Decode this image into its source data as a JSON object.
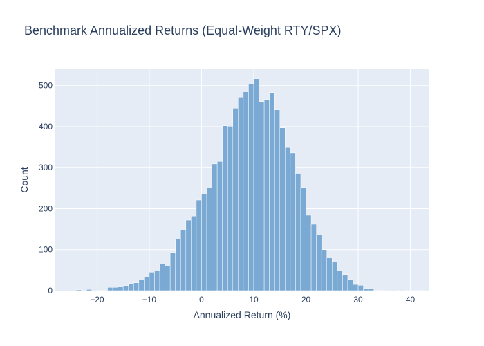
{
  "chart_data": {
    "type": "bar",
    "title": "Benchmark Annualized Returns (Equal-Weight RTY/SPX)",
    "xlabel": "Annualized Return (%)",
    "ylabel": "Count",
    "xlim": [
      -28,
      43.5
    ],
    "ylim": [
      0,
      540
    ],
    "x_ticks": [
      -20,
      -10,
      0,
      10,
      20,
      30,
      40
    ],
    "x_tick_labels": [
      "−20",
      "−10",
      "0",
      "10",
      "20",
      "30",
      "40"
    ],
    "y_ticks": [
      0,
      100,
      200,
      300,
      400,
      500
    ],
    "y_tick_labels": [
      "0",
      "100",
      "200",
      "300",
      "400",
      "500"
    ],
    "bin_width": 1,
    "bin_starts": [
      -26,
      -25,
      -24,
      -23,
      -22,
      -21,
      -20,
      -19,
      -18,
      -17,
      -16,
      -15,
      -14,
      -13,
      -12,
      -11,
      -10,
      -9,
      -8,
      -7,
      -6,
      -5,
      -4,
      -3,
      -2,
      -1,
      0,
      1,
      2,
      3,
      4,
      5,
      6,
      7,
      8,
      9,
      10,
      11,
      12,
      13,
      14,
      15,
      16,
      17,
      18,
      19,
      20,
      21,
      22,
      23,
      24,
      25,
      26,
      27,
      28,
      29,
      30,
      31,
      32,
      33,
      34,
      35,
      36,
      37,
      38,
      39,
      40,
      41,
      42
    ],
    "counts": [
      0,
      0,
      2,
      0,
      3,
      0,
      1,
      1,
      8,
      8,
      9,
      12,
      17,
      19,
      26,
      33,
      45,
      48,
      65,
      60,
      93,
      126,
      148,
      172,
      182,
      221,
      235,
      251,
      309,
      315,
      402,
      401,
      445,
      472,
      485,
      504,
      517,
      461,
      466,
      483,
      441,
      397,
      349,
      336,
      286,
      252,
      184,
      162,
      136,
      100,
      80,
      70,
      48,
      39,
      27,
      15,
      13,
      5,
      4,
      1,
      1,
      1,
      0,
      1,
      0,
      1,
      1,
      1,
      1
    ],
    "bar_color": "#7aa9d3",
    "bar_outline": "#ffffff",
    "plot_background": "#e5ecf6",
    "grid": true,
    "legend": false
  }
}
